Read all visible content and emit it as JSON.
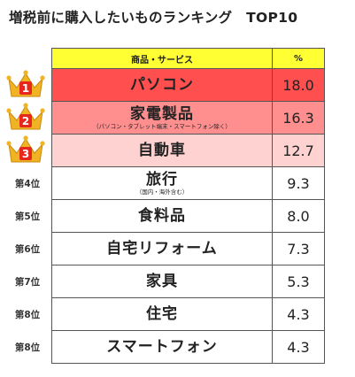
{
  "title": "増税前に購入したいものランキング　TOP10",
  "chart_data": {
    "type": "table",
    "columns": [
      "商品・サービス",
      "%"
    ],
    "rows": [
      {
        "rank": "1",
        "name": "パソコン",
        "note": "",
        "value": "18.0"
      },
      {
        "rank": "2",
        "name": "家電製品",
        "note": "（パソコン・タブレット端末・スマートフォン除く）",
        "value": "16.3"
      },
      {
        "rank": "3",
        "name": "自動車",
        "note": "",
        "value": "12.7"
      },
      {
        "rank": "第4位",
        "name": "旅行",
        "note": "（国内・海外含む）",
        "value": "9.3"
      },
      {
        "rank": "第5位",
        "name": "食料品",
        "note": "",
        "value": "8.0"
      },
      {
        "rank": "第6位",
        "name": "自宅リフォーム",
        "note": "",
        "value": "7.3"
      },
      {
        "rank": "第7位",
        "name": "家具",
        "note": "",
        "value": "5.3"
      },
      {
        "rank": "第8位",
        "name": "住宅",
        "note": "",
        "value": "4.3"
      },
      {
        "rank": "第8位",
        "name": "スマートフォン",
        "note": "",
        "value": "4.3"
      }
    ]
  },
  "colors": {
    "header": "#ffff33",
    "rank1": "#ff4f4f",
    "rank2": "#ff8e8e",
    "rank3": "#ffd2d2",
    "crown": "#f0b323",
    "crown_badge": "#e8271c"
  }
}
